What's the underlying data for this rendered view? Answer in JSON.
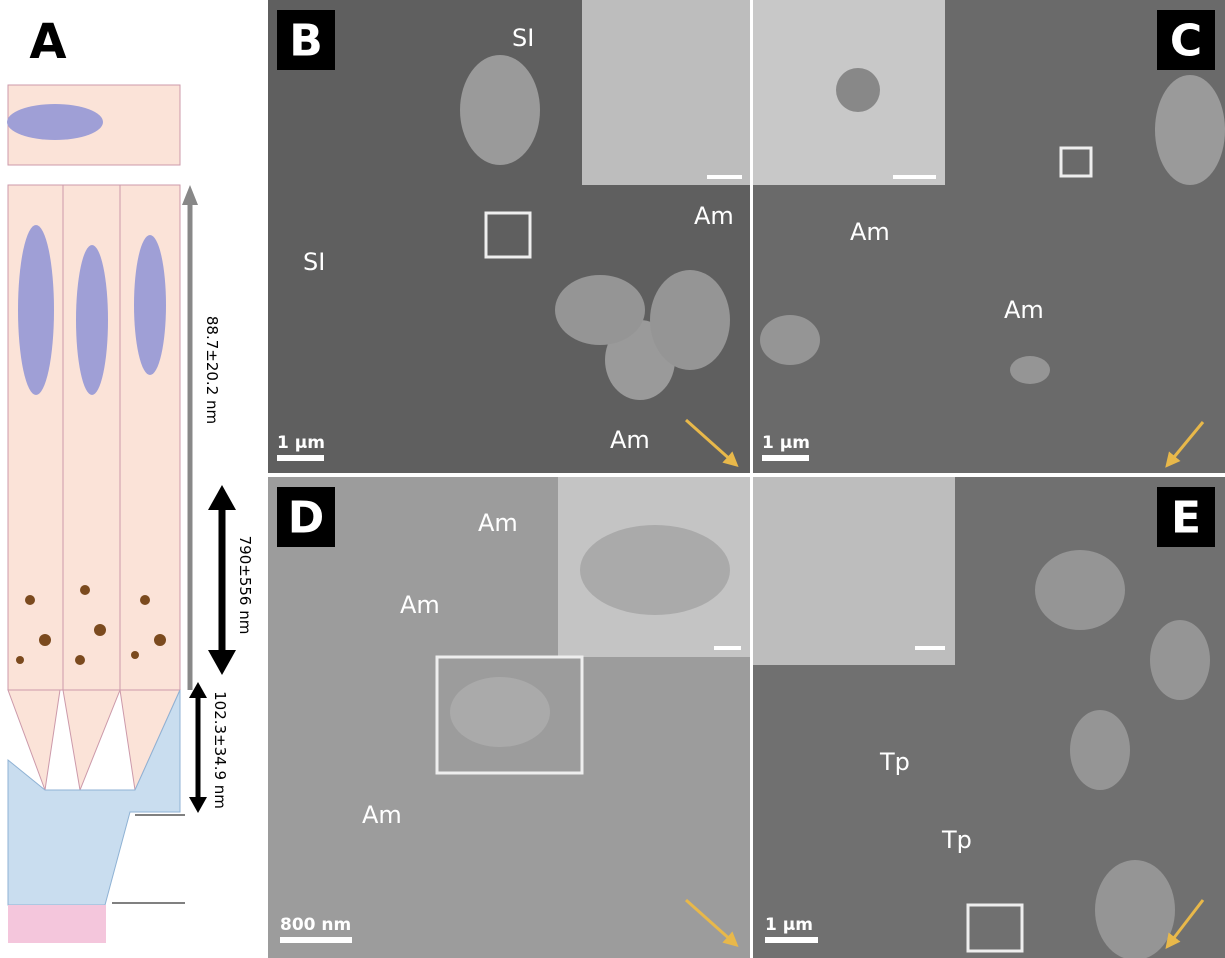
{
  "panels": [
    {
      "label": "A",
      "dimensions": [
        "88.7±20.2 nm",
        "790±556 nm",
        "102.3±34.9 nm"
      ]
    },
    {
      "label": "B",
      "scale_bar": "1 µm",
      "annotations": [
        "SI",
        "SI",
        "Am",
        "Am"
      ]
    },
    {
      "label": "C",
      "scale_bar": "1 µm",
      "annotations": [
        "Am",
        "Am"
      ]
    },
    {
      "label": "D",
      "scale_bar": "800 nm",
      "annotations": [
        "Am",
        "Am",
        "Am"
      ]
    },
    {
      "label": "E",
      "scale_bar": "1 µm",
      "annotations": [
        "Tp",
        "Tp"
      ]
    }
  ]
}
